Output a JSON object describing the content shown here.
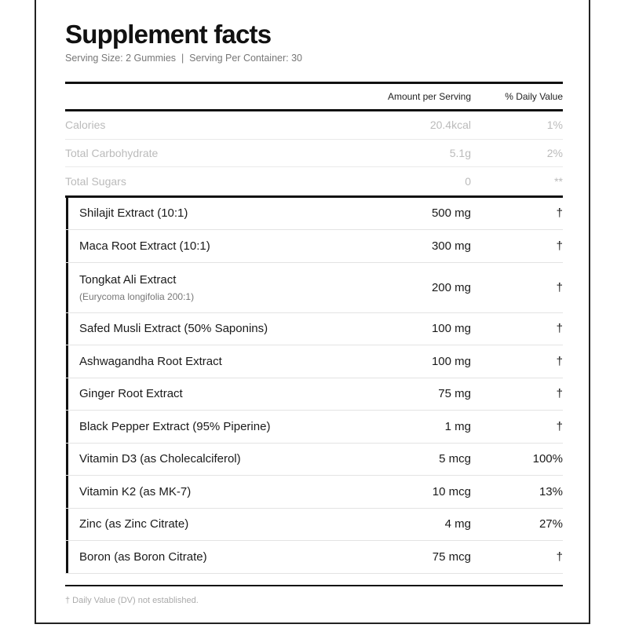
{
  "title": "Supplement facts",
  "serving": "Serving Size: 2 Gummies  |  Serving Per Container: 30",
  "header": {
    "amount": "Amount per Serving",
    "dv": "% Daily Value"
  },
  "nutrition": [
    {
      "name": "Calories",
      "amount": "20.4kcal",
      "dv": "1%"
    },
    {
      "name": "Total Carbohydrate",
      "amount": "5.1g",
      "dv": "2%"
    },
    {
      "name": "Total Sugars",
      "amount": "0",
      "dv": "**"
    }
  ],
  "ingredients": [
    {
      "name": "Shilajit Extract (10:1)",
      "amount": "500 mg",
      "dv": "†"
    },
    {
      "name": "Maca Root Extract (10:1)",
      "amount": "300 mg",
      "dv": "†"
    },
    {
      "name": "Tongkat Ali Extract",
      "sub": "(Eurycoma longifolia 200:1)",
      "amount": "200 mg",
      "dv": "†"
    },
    {
      "name": "Safed Musli Extract (50% Saponins)",
      "amount": "100 mg",
      "dv": "†"
    },
    {
      "name": "Ashwagandha Root Extract",
      "amount": "100 mg",
      "dv": "†"
    },
    {
      "name": "Ginger Root Extract",
      "amount": "75 mg",
      "dv": "†"
    },
    {
      "name": "Black Pepper Extract (95% Piperine)",
      "amount": "1 mg",
      "dv": "†"
    },
    {
      "name": "Vitamin D3 (as Cholecalciferol)",
      "amount": "5 mcg",
      "dv": "100%"
    },
    {
      "name": "Vitamin K2 (as MK-7)",
      "amount": "10 mcg",
      "dv": "13%"
    },
    {
      "name": "Zinc (as Zinc Citrate)",
      "amount": "4 mg",
      "dv": "27%"
    },
    {
      "name": "Boron (as Boron Citrate)",
      "amount": "75 mcg",
      "dv": "†"
    }
  ],
  "footnote": "† Daily Value (DV) not established."
}
